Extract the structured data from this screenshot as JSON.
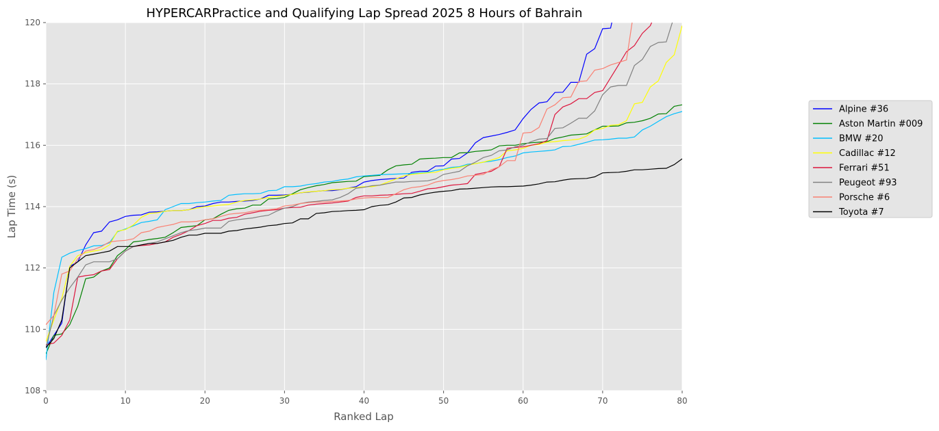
{
  "chart_data": {
    "type": "line",
    "title": "HYPERCARPractice and Qualifying Lap Spread 2025 8 Hours of Bahrain",
    "xlabel": "Ranked Lap",
    "ylabel": "Lap Time (s)",
    "xlim": [
      0,
      80
    ],
    "ylim": [
      108,
      120
    ],
    "xticks": [
      0,
      10,
      20,
      30,
      40,
      50,
      60,
      70,
      80
    ],
    "yticks": [
      108,
      110,
      112,
      114,
      116,
      118,
      120
    ],
    "grid": true,
    "background": "#e5e5e5",
    "legend_placement": "right",
    "series": [
      {
        "name": "Alpine #36",
        "color": "#0000ff",
        "values": [
          109.4,
          109.8,
          110.2,
          112.05,
          112.2,
          112.75,
          113.15,
          113.2,
          113.5,
          113.57,
          113.68,
          113.72,
          113.73,
          113.82,
          113.83,
          113.85,
          113.87,
          113.87,
          113.9,
          114.0,
          114.02,
          114.1,
          114.15,
          114.15,
          114.17,
          114.18,
          114.2,
          114.25,
          114.37,
          114.37,
          114.38,
          114.4,
          114.45,
          114.47,
          114.5,
          114.52,
          114.52,
          114.55,
          114.6,
          114.65,
          114.8,
          114.85,
          114.88,
          114.9,
          114.92,
          114.93,
          115.12,
          115.15,
          115.15,
          115.32,
          115.33,
          115.55,
          115.57,
          115.75,
          116.08,
          116.25,
          116.3,
          116.35,
          116.42,
          116.5,
          116.87,
          117.17,
          117.38,
          117.42,
          117.72,
          117.73,
          118.05,
          118.05,
          118.97,
          119.15,
          119.8,
          119.82,
          121.0
        ]
      },
      {
        "name": "Aston Martin #009",
        "color": "#008000",
        "values": [
          109.2,
          109.8,
          109.85,
          110.15,
          110.75,
          111.65,
          111.7,
          111.9,
          112.0,
          112.4,
          112.6,
          112.85,
          112.88,
          112.93,
          112.96,
          113.0,
          113.15,
          113.32,
          113.35,
          113.38,
          113.57,
          113.6,
          113.75,
          113.88,
          113.93,
          113.95,
          114.05,
          114.05,
          114.25,
          114.26,
          114.3,
          114.42,
          114.55,
          114.62,
          114.68,
          114.72,
          114.78,
          114.8,
          114.82,
          114.83,
          114.98,
          115.0,
          115.02,
          115.2,
          115.33,
          115.36,
          115.38,
          115.55,
          115.57,
          115.58,
          115.6,
          115.6,
          115.75,
          115.76,
          115.8,
          115.82,
          115.85,
          115.98,
          116.0,
          116.0,
          116.05,
          116.08,
          116.1,
          116.12,
          116.22,
          116.27,
          116.33,
          116.35,
          116.37,
          116.5,
          116.62,
          116.62,
          116.63,
          116.73,
          116.75,
          116.8,
          116.88,
          117.02,
          117.03,
          117.27,
          117.32
        ]
      },
      {
        "name": "BMW #20",
        "color": "#00bfff",
        "values": [
          109.0,
          111.2,
          112.35,
          112.48,
          112.57,
          112.63,
          112.72,
          112.73,
          112.82,
          113.18,
          113.27,
          113.37,
          113.48,
          113.52,
          113.57,
          113.9,
          114.0,
          114.1,
          114.1,
          114.13,
          114.15,
          114.18,
          114.2,
          114.37,
          114.4,
          114.42,
          114.42,
          114.43,
          114.52,
          114.53,
          114.65,
          114.65,
          114.67,
          114.72,
          114.75,
          114.8,
          114.82,
          114.87,
          114.9,
          114.97,
          115.0,
          115.02,
          115.04,
          115.05,
          115.06,
          115.07,
          115.08,
          115.1,
          115.12,
          115.18,
          115.22,
          115.28,
          115.3,
          115.38,
          115.4,
          115.45,
          115.48,
          115.53,
          115.6,
          115.65,
          115.75,
          115.78,
          115.8,
          115.82,
          115.85,
          115.96,
          115.97,
          116.03,
          116.1,
          116.17,
          116.18,
          116.2,
          116.23,
          116.23,
          116.27,
          116.5,
          116.62,
          116.78,
          116.93,
          117.03,
          117.1
        ]
      },
      {
        "name": "Cadillac #12",
        "color": "#ffff00",
        "values": [
          109.6,
          110.3,
          111.0,
          112.05,
          112.4,
          112.5,
          112.55,
          112.6,
          112.75,
          113.2,
          113.25,
          113.4,
          113.65,
          113.78,
          113.8,
          113.85,
          113.87,
          113.87,
          113.9,
          113.95,
          114.0,
          114.02,
          114.05,
          114.07,
          114.15,
          114.2,
          114.22,
          114.25,
          114.3,
          114.33,
          114.36,
          114.4,
          114.45,
          114.48,
          114.5,
          114.52,
          114.55,
          114.56,
          114.6,
          114.62,
          114.65,
          114.65,
          114.7,
          114.8,
          114.9,
          115.0,
          115.05,
          115.08,
          115.1,
          115.12,
          115.2,
          115.25,
          115.28,
          115.35,
          115.4,
          115.45,
          115.52,
          115.6,
          115.82,
          115.85,
          115.9,
          116.0,
          116.03,
          116.1,
          116.12,
          116.15,
          116.17,
          116.2,
          116.3,
          116.5,
          116.55,
          116.65,
          116.67,
          116.8,
          117.35,
          117.4,
          117.9,
          118.1,
          118.7,
          118.95,
          119.9
        ]
      },
      {
        "name": "Ferrari #51",
        "color": "#dc143c",
        "values": [
          109.5,
          109.55,
          109.8,
          110.3,
          111.7,
          111.75,
          111.78,
          111.9,
          111.95,
          112.3,
          112.55,
          112.7,
          112.73,
          112.75,
          112.8,
          112.85,
          113.0,
          113.1,
          113.22,
          113.38,
          113.45,
          113.55,
          113.55,
          113.62,
          113.65,
          113.75,
          113.8,
          113.85,
          113.88,
          113.9,
          113.95,
          113.97,
          113.98,
          114.05,
          114.08,
          114.1,
          114.12,
          114.15,
          114.18,
          114.3,
          114.35,
          114.35,
          114.37,
          114.38,
          114.4,
          114.42,
          114.43,
          114.5,
          114.58,
          114.6,
          114.65,
          114.7,
          114.72,
          114.75,
          115.05,
          115.1,
          115.15,
          115.3,
          115.9,
          115.93,
          115.95,
          116.0,
          116.05,
          116.15,
          117.0,
          117.25,
          117.35,
          117.52,
          117.52,
          117.72,
          117.78,
          118.2,
          118.62,
          119.05,
          119.25,
          119.65,
          119.9,
          120.5
        ]
      },
      {
        "name": "Peugeot #93",
        "color": "#808080",
        "values": [
          109.4,
          110.45,
          110.95,
          111.35,
          111.7,
          112.1,
          112.2,
          112.2,
          112.2,
          112.3,
          112.55,
          112.7,
          112.75,
          112.8,
          112.85,
          112.95,
          113.05,
          113.15,
          113.22,
          113.25,
          113.3,
          113.3,
          113.3,
          113.52,
          113.57,
          113.6,
          113.63,
          113.68,
          113.72,
          113.85,
          113.95,
          114.0,
          114.1,
          114.15,
          114.17,
          114.2,
          114.22,
          114.3,
          114.42,
          114.6,
          114.63,
          114.68,
          114.7,
          114.75,
          114.8,
          114.8,
          114.82,
          114.83,
          114.84,
          114.9,
          115.05,
          115.1,
          115.15,
          115.33,
          115.45,
          115.6,
          115.67,
          115.82,
          115.85,
          115.95,
          116.0,
          116.12,
          116.2,
          116.22,
          116.55,
          116.57,
          116.72,
          116.88,
          116.88,
          117.12,
          117.65,
          117.9,
          117.95,
          117.95,
          118.6,
          118.8,
          119.22,
          119.35,
          119.37,
          120.2
        ]
      },
      {
        "name": "Porsche #6",
        "color": "#fa8072",
        "values": [
          110.15,
          110.45,
          111.8,
          111.9,
          112.3,
          112.55,
          112.6,
          112.7,
          112.85,
          112.88,
          112.9,
          112.95,
          113.15,
          113.2,
          113.32,
          113.37,
          113.42,
          113.5,
          113.5,
          113.52,
          113.57,
          113.6,
          113.68,
          113.75,
          113.78,
          113.8,
          113.85,
          113.88,
          113.9,
          113.93,
          114.02,
          114.05,
          114.1,
          114.13,
          114.15,
          114.15,
          114.17,
          114.18,
          114.2,
          114.25,
          114.28,
          114.3,
          114.3,
          114.3,
          114.42,
          114.55,
          114.62,
          114.65,
          114.7,
          114.8,
          114.85,
          114.88,
          114.93,
          115.0,
          115.02,
          115.05,
          115.2,
          115.3,
          115.5,
          115.5,
          116.4,
          116.42,
          116.58,
          117.18,
          117.32,
          117.55,
          117.57,
          118.08,
          118.1,
          118.45,
          118.5,
          118.62,
          118.7,
          118.78,
          120.5
        ]
      },
      {
        "name": "Toyota #7",
        "color": "#000000",
        "values": [
          109.4,
          109.7,
          110.3,
          112.0,
          112.2,
          112.4,
          112.45,
          112.5,
          112.55,
          112.7,
          112.7,
          112.7,
          112.75,
          112.8,
          112.8,
          112.85,
          112.9,
          113.0,
          113.07,
          113.07,
          113.13,
          113.13,
          113.13,
          113.2,
          113.22,
          113.27,
          113.3,
          113.33,
          113.38,
          113.4,
          113.45,
          113.47,
          113.6,
          113.6,
          113.78,
          113.8,
          113.84,
          113.85,
          113.87,
          113.88,
          113.9,
          114.0,
          114.04,
          114.06,
          114.15,
          114.28,
          114.3,
          114.38,
          114.43,
          114.47,
          114.5,
          114.52,
          114.57,
          114.58,
          114.6,
          114.62,
          114.64,
          114.65,
          114.65,
          114.66,
          114.67,
          114.7,
          114.74,
          114.8,
          114.81,
          114.86,
          114.9,
          114.91,
          114.92,
          114.97,
          115.1,
          115.11,
          115.12,
          115.15,
          115.2,
          115.2,
          115.22,
          115.24,
          115.25,
          115.37,
          115.56
        ]
      }
    ]
  }
}
